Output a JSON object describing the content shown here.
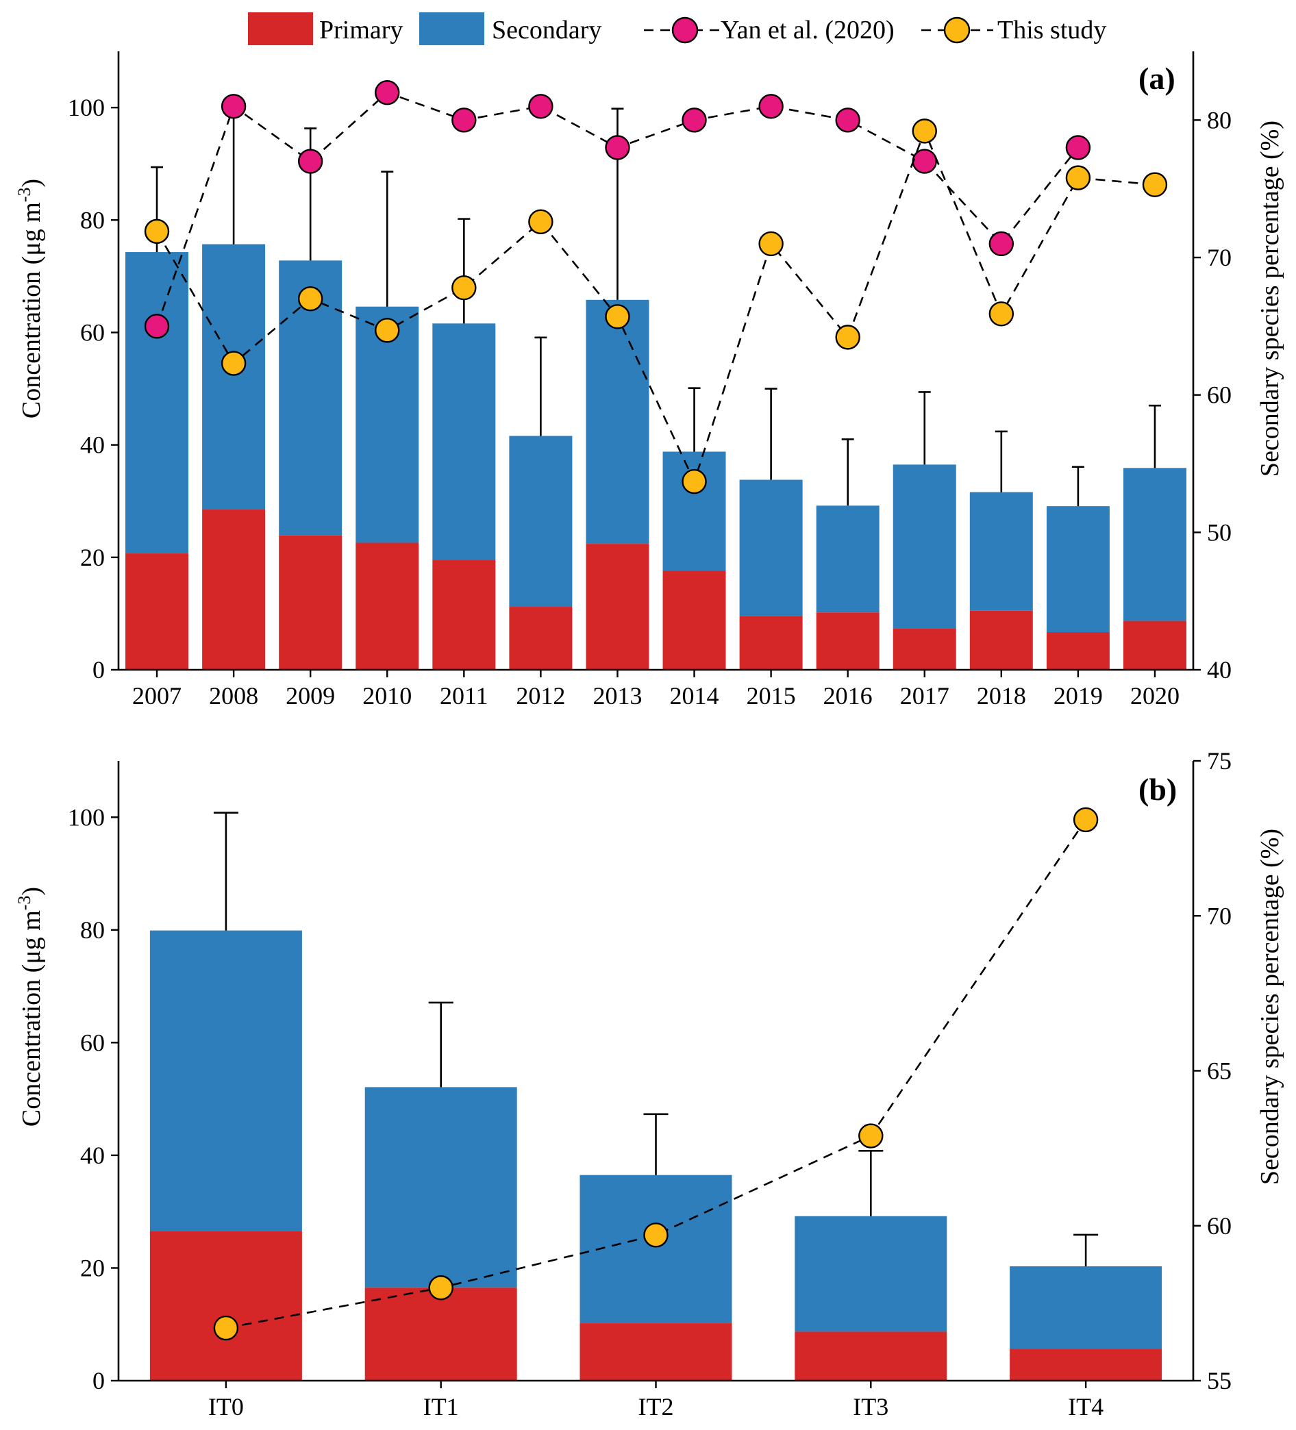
{
  "legend": {
    "primary": "Primary",
    "secondary": "Secondary",
    "yan": "Yan et al. (2020)",
    "this_study": "This study"
  },
  "colors": {
    "primary": "#d62728",
    "secondary": "#2f7ebc",
    "yan": "#e6177d",
    "this_study": "#fdb813"
  },
  "chart_data": [
    {
      "type": "bar",
      "stacked": true,
      "panel_label": "(a)",
      "ylabel_left": "Concentration (μg m⁻³)",
      "ylabel_right": "Secondary species percentage (%)",
      "ylim_left": [
        0,
        110
      ],
      "ylim_right": [
        40,
        85
      ],
      "yticks_left": [
        0,
        20,
        40,
        60,
        80,
        100
      ],
      "yticks_right": [
        40,
        50,
        60,
        70,
        80
      ],
      "categories": [
        "2007",
        "2008",
        "2009",
        "2010",
        "2011",
        "2012",
        "2013",
        "2014",
        "2015",
        "2016",
        "2017",
        "2018",
        "2019",
        "2020"
      ],
      "series": [
        {
          "name": "Primary",
          "values": [
            20.7,
            28.5,
            23.9,
            22.6,
            19.6,
            11.2,
            22.4,
            17.6,
            9.6,
            10.2,
            7.4,
            10.5,
            6.7,
            8.7
          ]
        },
        {
          "name": "Secondary",
          "values": [
            53.6,
            47.2,
            48.9,
            42.0,
            42.0,
            30.4,
            43.4,
            21.2,
            24.2,
            19.0,
            29.1,
            21.1,
            22.4,
            27.2
          ]
        }
      ],
      "error_upper": [
        89.4,
        100.7,
        96.3,
        88.6,
        80.2,
        59.1,
        99.8,
        50.1,
        50.0,
        41.0,
        49.4,
        42.4,
        36.1,
        47.0
      ],
      "lines": [
        {
          "name": "Yan et al. (2020)",
          "values": [
            65.0,
            81.0,
            77.0,
            82.0,
            80.0,
            81.0,
            78.0,
            80.0,
            81.0,
            80.0,
            77.0,
            71.0,
            78.0,
            null
          ]
        },
        {
          "name": "This study",
          "values": [
            71.9,
            62.3,
            67.0,
            64.7,
            67.8,
            72.6,
            65.7,
            53.7,
            71.0,
            64.2,
            79.2,
            65.9,
            75.8,
            75.3
          ]
        }
      ]
    },
    {
      "type": "bar",
      "stacked": true,
      "panel_label": "(b)",
      "ylabel_left": "Concentration (μg m⁻³)",
      "ylabel_right": "Secondary species percentage (%)",
      "ylim_left": [
        0,
        110
      ],
      "ylim_right": [
        55,
        75
      ],
      "yticks_left": [
        0,
        20,
        40,
        60,
        80,
        100
      ],
      "yticks_right": [
        55,
        60,
        65,
        70,
        75
      ],
      "categories": [
        "IT0",
        "IT1",
        "IT2",
        "IT3",
        "IT4"
      ],
      "series": [
        {
          "name": "Primary",
          "values": [
            26.5,
            16.5,
            10.2,
            8.7,
            5.7
          ]
        },
        {
          "name": "Secondary",
          "values": [
            53.4,
            35.6,
            26.3,
            20.5,
            14.6
          ]
        }
      ],
      "error_upper": [
        100.8,
        67.1,
        47.3,
        40.8,
        25.9
      ],
      "lines": [
        {
          "name": "This study",
          "values": [
            56.7,
            58.0,
            59.7,
            62.9,
            73.1
          ]
        }
      ]
    }
  ]
}
